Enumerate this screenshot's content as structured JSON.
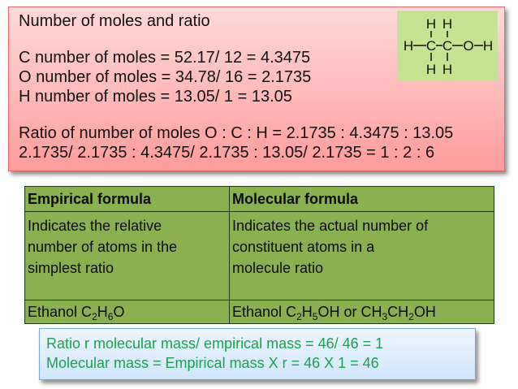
{
  "top_box": {
    "title": "Number of moles and ratio",
    "c_line": "C number of moles = 52.17/ 12 = 4.3475",
    "o_line": "O number of moles = 34.78/ 16 = 2.1735",
    "h_line": "H number of moles = 13.05/ 1 = 13.05",
    "ratio_line1": "Ratio of number of moles O : C : H = 2.1735 : 4.3475 : 13.05",
    "ratio_line2": "2.1735/ 2.1735 : 4.3475/ 2.1735 : 13.05/ 2.1735 = 1 : 2 : 6"
  },
  "structure": {
    "atoms_top": [
      "H",
      "H"
    ],
    "atoms_middle": [
      "H",
      "C",
      "C",
      "O",
      "H"
    ],
    "atoms_bottom": [
      "H",
      "H"
    ]
  },
  "table": {
    "header": {
      "empirical": "Empirical formula",
      "molecular": "Molecular formula"
    },
    "empirical_desc": [
      "Indicates the relative",
      "number of atoms in the",
      "simplest ratio"
    ],
    "molecular_desc": [
      "Indicates the actual number of",
      "constituent atoms in a",
      "molecule ratio"
    ],
    "empirical_example": {
      "prefix": "Ethanol C",
      "s1": "2",
      "t1": "H",
      "s2": "6",
      "t2": "O"
    },
    "molecular_example": {
      "prefix": "Ethanol C",
      "s1": "2",
      "t1": "H",
      "s2": "5",
      "t2": "OH or CH",
      "s3": "3",
      "t3": "CH",
      "s4": "2",
      "t4": "OH"
    }
  },
  "bottom_box": {
    "line1": "Ratio r molecular mass/ empirical mass = 46/ 46 = 1",
    "line2": "Molecular mass = Empirical mass X r = 46 X 1 = 46"
  },
  "colors": {
    "top_box_top": "#ffd9d9",
    "top_box_bottom": "#ff9c9c",
    "table_green": "#8ab150",
    "structure_bg": "#c4e493",
    "bottom_text": "#16a34a"
  }
}
